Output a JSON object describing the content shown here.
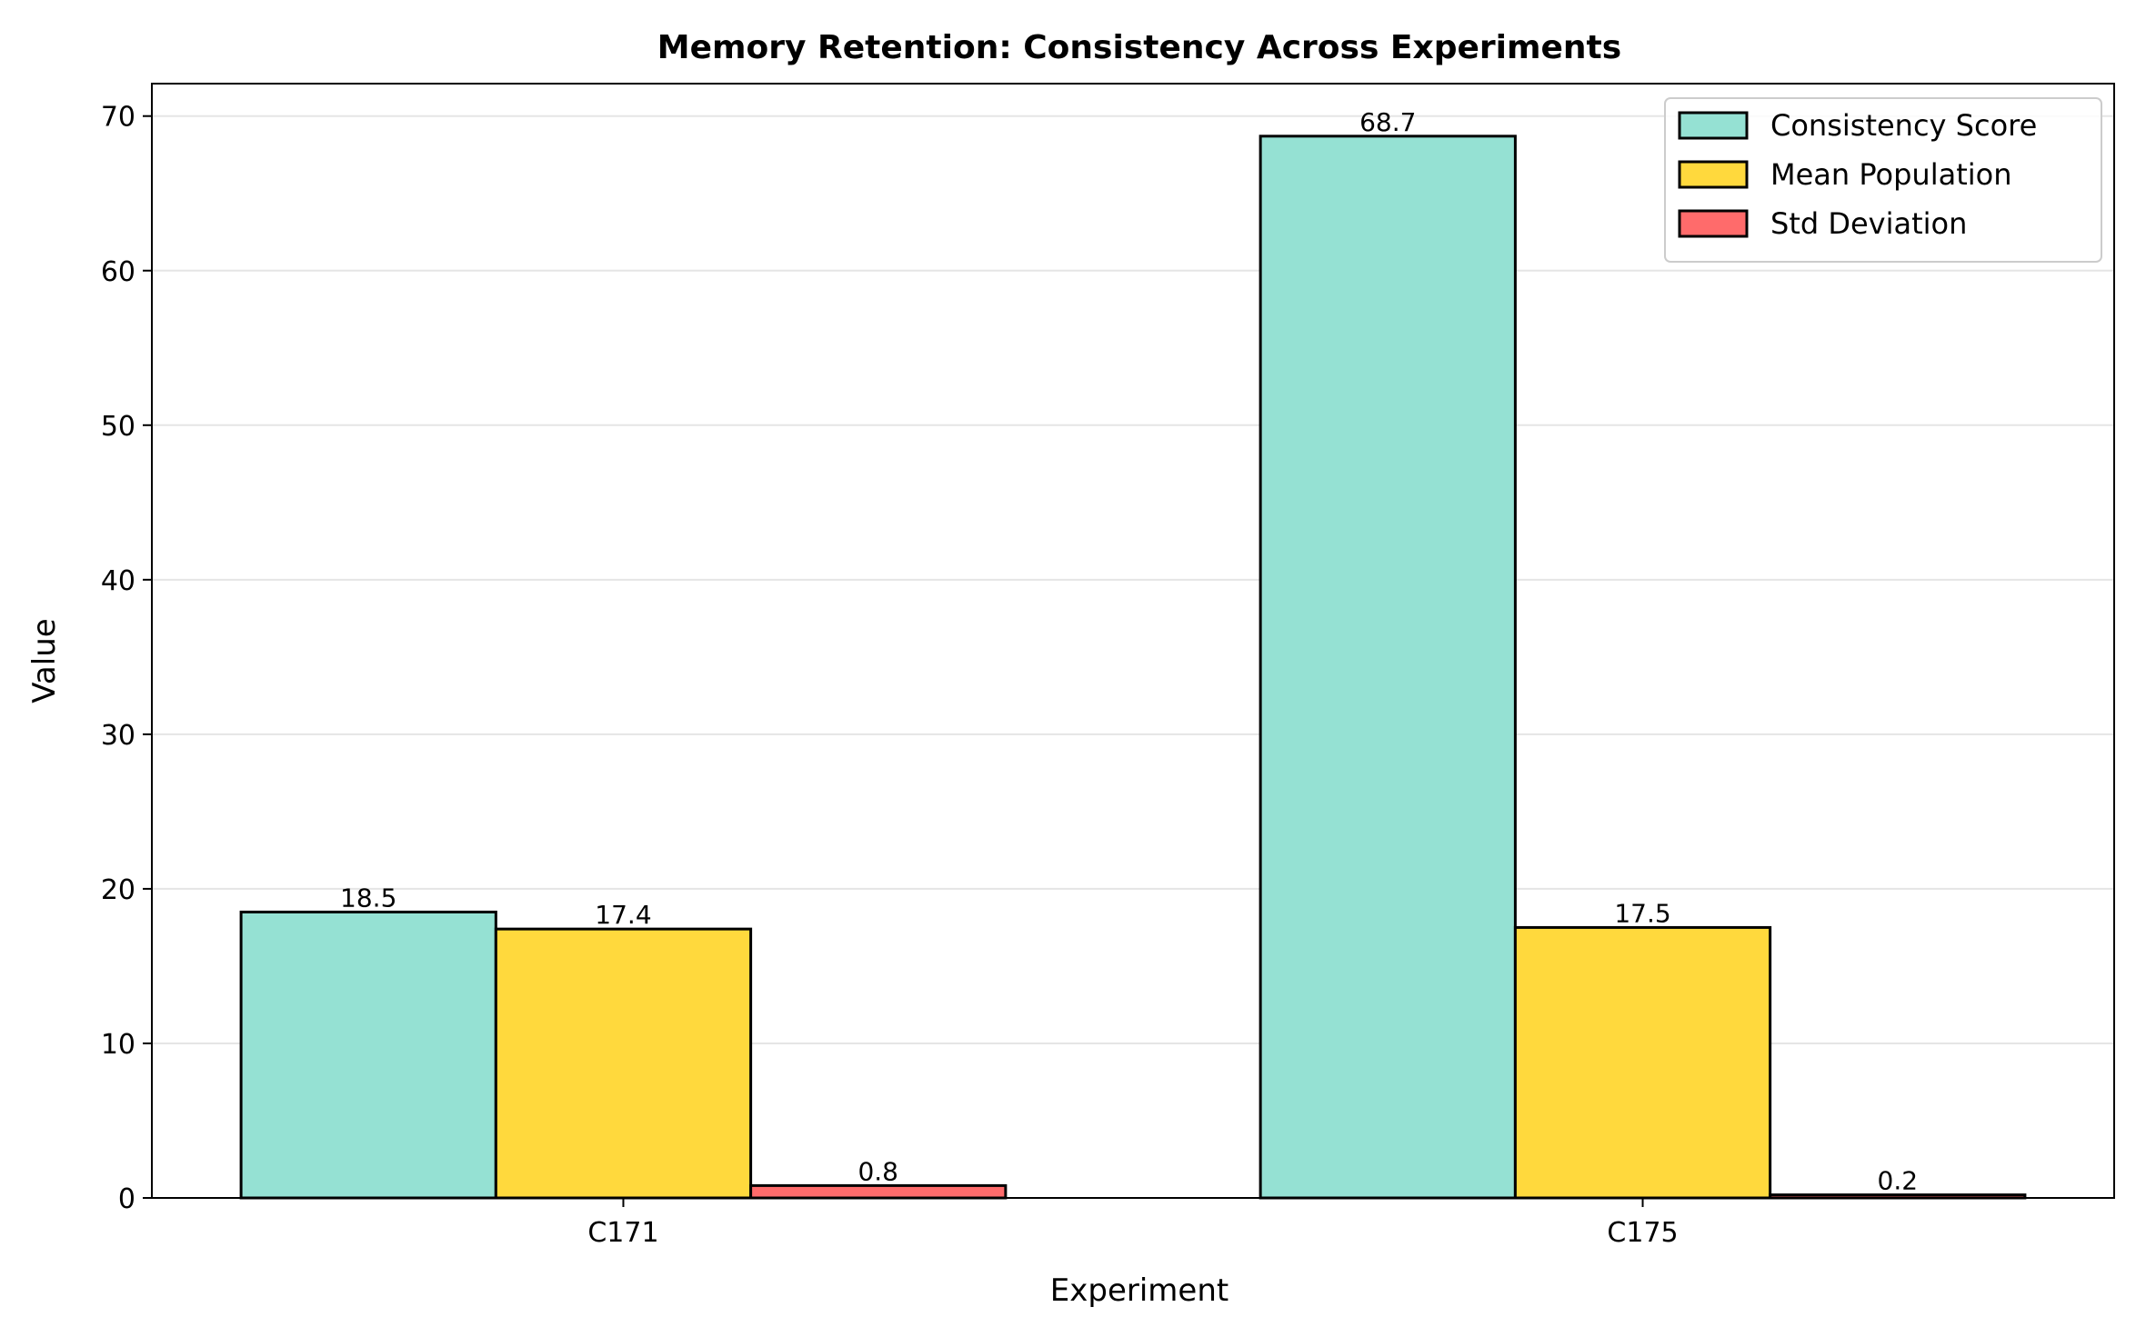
{
  "chart_data": {
    "type": "bar",
    "title": "Memory Retention: Consistency Across Experiments",
    "xlabel": "Experiment",
    "ylabel": "Value",
    "categories": [
      "C171",
      "C175"
    ],
    "series": [
      {
        "name": "Consistency Score",
        "values": [
          18.5,
          68.7
        ],
        "labels": [
          "18.5",
          "68.7"
        ],
        "color": "#95e1d3"
      },
      {
        "name": "Mean Population",
        "values": [
          17.4,
          17.5
        ],
        "labels": [
          "17.4",
          "17.5"
        ],
        "color": "#ffd93d"
      },
      {
        "name": "Std Deviation",
        "values": [
          0.8,
          0.2
        ],
        "labels": [
          "0.8",
          "0.2"
        ],
        "color": "#ff6b6b"
      }
    ],
    "ylim": [
      0,
      72.1
    ],
    "yticks": [
      0,
      10,
      20,
      30,
      40,
      50,
      60,
      70
    ],
    "grid": "y",
    "legend": "top-right"
  }
}
